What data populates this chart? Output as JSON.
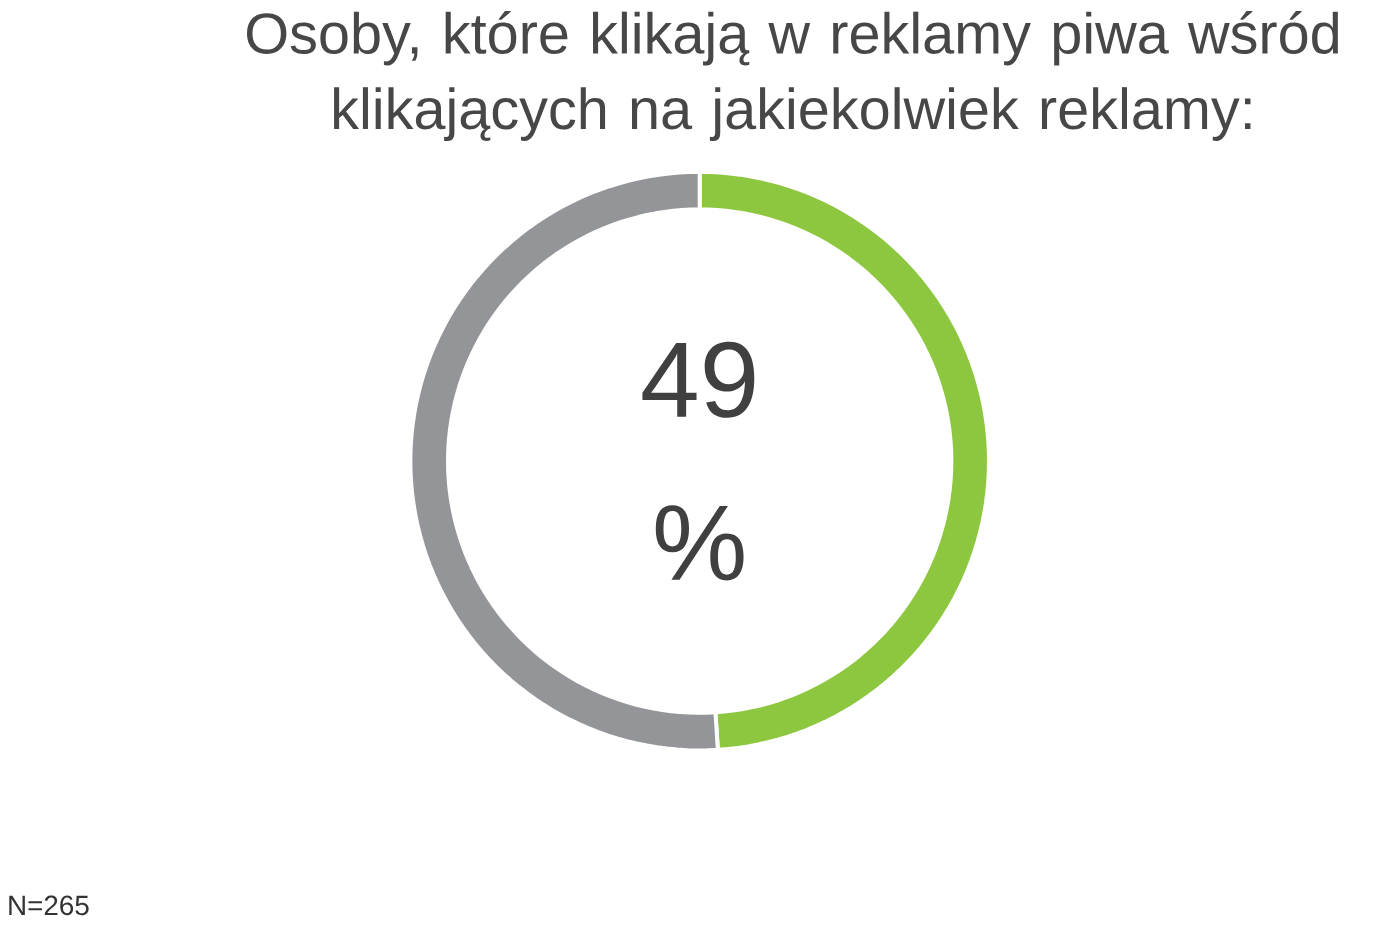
{
  "chart_data": {
    "type": "donut",
    "title": "Osoby, które klikają w reklamy piwa wśród klikających na jakiekolwiek reklamy:",
    "categories": [
      null,
      null
    ],
    "values": [
      49,
      51
    ],
    "colors": [
      "#8dc63f",
      "#939598"
    ],
    "annotations": [
      "49 %",
      "N=265"
    ]
  }
}
